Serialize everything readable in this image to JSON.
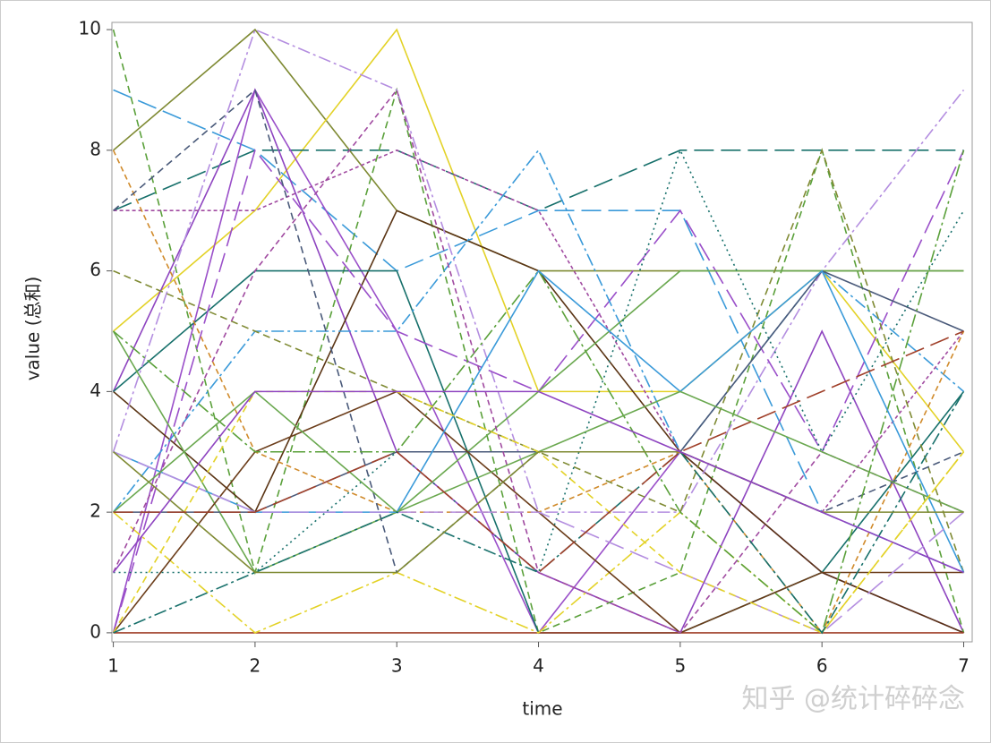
{
  "chart_data": {
    "type": "line",
    "x_label": "time",
    "y_label": "value (总和)",
    "watermark": "知乎 @统计碎碎念",
    "x": [
      1,
      2,
      3,
      4,
      5,
      6,
      7
    ],
    "xlim": [
      0.99,
      7.06
    ],
    "xticks": [
      1,
      2,
      3,
      4,
      5,
      6,
      7
    ],
    "ylim": [
      -0.15,
      10.12
    ],
    "yticks": [
      0,
      2,
      4,
      6,
      8,
      10
    ],
    "series": [
      {
        "color": "#7f8a33",
        "dash": "none",
        "values": [
          8,
          10,
          7,
          6,
          6,
          6,
          6
        ]
      },
      {
        "color": "#e3d227",
        "dash": "none",
        "values": [
          5,
          7,
          10,
          4,
          4,
          6,
          3
        ]
      },
      {
        "color": "#17706b",
        "dash": "22 8",
        "values": [
          7,
          8,
          8,
          7,
          8,
          8,
          8
        ]
      },
      {
        "color": "#3a9ad9",
        "dash": "22 8",
        "values": [
          9,
          8,
          6,
          7,
          7,
          2,
          1
        ]
      },
      {
        "color": "#9a4fc9",
        "dash": "none",
        "values": [
          0,
          9,
          5,
          0,
          3,
          1,
          0
        ]
      },
      {
        "color": "#8e44c0",
        "dash": "none",
        "values": [
          4,
          9,
          3,
          1,
          0,
          5,
          0
        ]
      },
      {
        "color": "#5aa03a",
        "dash": "8 5",
        "values": [
          10,
          1,
          9,
          0,
          1,
          8,
          0
        ]
      },
      {
        "color": "#5a3414",
        "dash": "none",
        "values": [
          4,
          2,
          7,
          6,
          3,
          1,
          0
        ]
      },
      {
        "color": "#17706b",
        "dash": "none",
        "values": [
          4,
          6,
          6,
          0,
          0,
          1,
          4
        ]
      },
      {
        "color": "#b48ee0",
        "dash": "14 4 3 4",
        "values": [
          3,
          10,
          9,
          2,
          2,
          6,
          9
        ]
      },
      {
        "color": "#a04aa0",
        "dash": "4 3",
        "values": [
          7,
          7,
          8,
          7,
          3,
          2,
          5
        ]
      },
      {
        "color": "#9a4fc9",
        "dash": "22 8",
        "values": [
          0,
          8,
          5,
          4,
          7,
          3,
          8
        ]
      },
      {
        "color": "#3a9ad9",
        "dash": "14 4 3 4",
        "values": [
          2,
          5,
          5,
          8,
          3,
          6,
          4
        ]
      },
      {
        "color": "#6aa84f",
        "dash": "none",
        "values": [
          5,
          1,
          2,
          4,
          6,
          6,
          6
        ]
      },
      {
        "color": "#4a5a7a",
        "dash": "none",
        "values": [
          2,
          2,
          3,
          3,
          3,
          6,
          5
        ]
      },
      {
        "color": "#a0402a",
        "dash": "none",
        "values": [
          0,
          0,
          0,
          0,
          0,
          0,
          0
        ]
      },
      {
        "color": "#7f8a33",
        "dash": "8 5",
        "values": [
          6,
          5,
          4,
          3,
          2,
          8,
          1
        ]
      },
      {
        "color": "#17706b",
        "dash": "2 4",
        "values": [
          1,
          1,
          3,
          1,
          8,
          3,
          7
        ]
      },
      {
        "color": "#e3d227",
        "dash": "14 4 3 4",
        "values": [
          2,
          0,
          1,
          0,
          2,
          0,
          3
        ]
      },
      {
        "color": "#d08a2a",
        "dash": "6 4",
        "values": [
          8,
          3,
          2,
          2,
          3,
          0,
          5
        ]
      },
      {
        "color": "#6b3d1a",
        "dash": "none",
        "values": [
          0,
          3,
          4,
          2,
          0,
          1,
          1
        ]
      },
      {
        "color": "#4a5a7a",
        "dash": "8 5",
        "values": [
          7,
          9,
          1,
          3,
          3,
          2,
          3
        ]
      },
      {
        "color": "#5aa03a",
        "dash": "14 4 3 4",
        "values": [
          5,
          3,
          3,
          6,
          2,
          0,
          8
        ]
      },
      {
        "color": "#a04aa0",
        "dash": "6 4",
        "values": [
          1,
          6,
          9,
          1,
          0,
          3,
          2
        ]
      },
      {
        "color": "#3a9ad9",
        "dash": "none",
        "values": [
          3,
          2,
          2,
          6,
          4,
          6,
          1
        ]
      },
      {
        "color": "#b48ee0",
        "dash": "22 8",
        "values": [
          3,
          2,
          2,
          2,
          1,
          0,
          2
        ]
      },
      {
        "color": "#6aa84f",
        "dash": "none",
        "values": [
          2,
          4,
          2,
          3,
          4,
          3,
          2
        ]
      },
      {
        "color": "#e3d227",
        "dash": "8 5",
        "values": [
          0,
          4,
          4,
          3,
          1,
          0,
          3
        ]
      },
      {
        "color": "#17706b",
        "dash": "14 4 3 4",
        "values": [
          0,
          1,
          2,
          1,
          3,
          0,
          4
        ]
      },
      {
        "color": "#7f8a33",
        "dash": "none",
        "values": [
          3,
          1,
          1,
          3,
          3,
          2,
          2
        ]
      },
      {
        "color": "#8e44c0",
        "dash": "none",
        "values": [
          1,
          4,
          4,
          4,
          3,
          2,
          1
        ]
      },
      {
        "color": "#a0402a",
        "dash": "22 8",
        "values": [
          2,
          2,
          3,
          1,
          3,
          4,
          5
        ]
      }
    ]
  }
}
